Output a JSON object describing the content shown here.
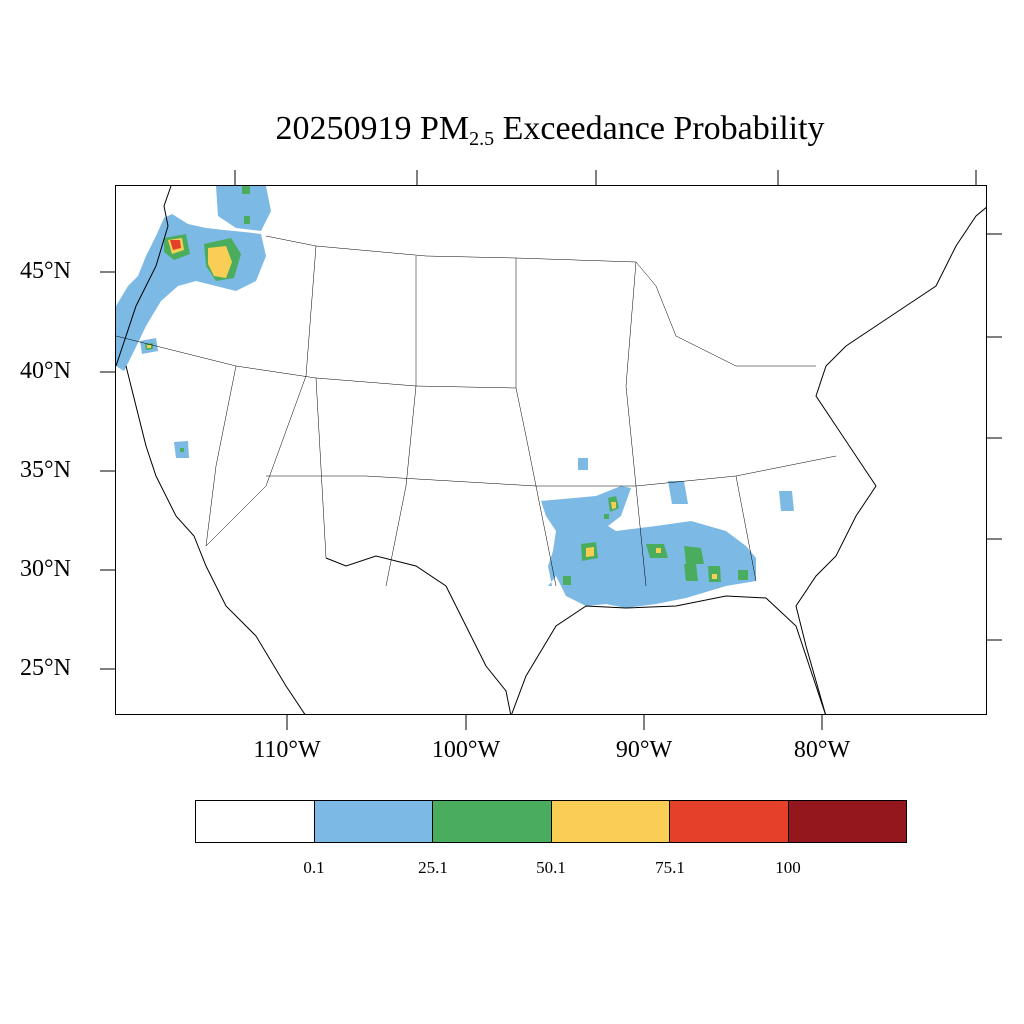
{
  "title": {
    "date": "20250919",
    "pm_main": "PM",
    "pm_sub": "2.5",
    "rest": "Exceedance Probability"
  },
  "lat_labels": [
    "45°N",
    "40°N",
    "35°N",
    "30°N",
    "25°N"
  ],
  "lon_labels": [
    "110°W",
    "100°W",
    "90°W",
    "80°W"
  ],
  "colorbar": {
    "colors": [
      "#ffffff",
      "#7cb9e4",
      "#4aad5e",
      "#f9ce55",
      "#e5402a",
      "#93171c"
    ],
    "tick_labels": [
      "0.1",
      "25.1",
      "50.1",
      "75.1",
      "100"
    ]
  }
}
